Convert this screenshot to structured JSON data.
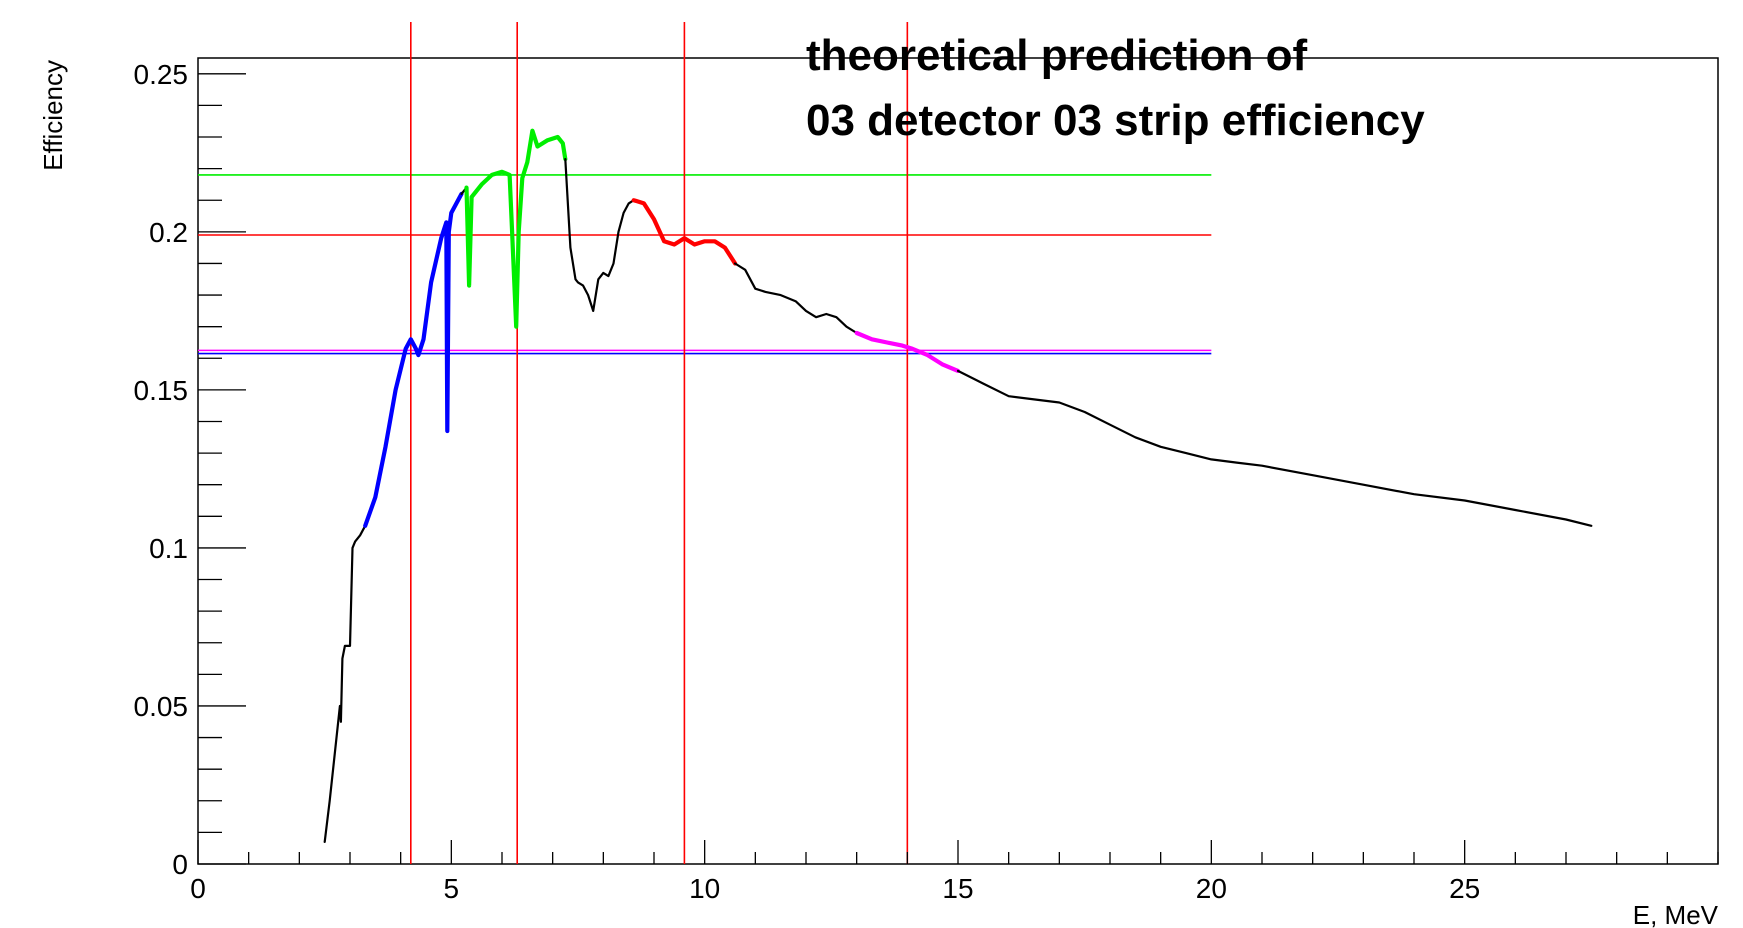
{
  "chart_data": {
    "type": "line",
    "title_lines": [
      "theoretical prediction of",
      "03 detector 03 strip efficiency"
    ],
    "xlabel": "E, MeV",
    "ylabel": "Efficiency",
    "xlim": [
      0,
      30
    ],
    "ylim": [
      0,
      0.255
    ],
    "x_ticks": [
      0,
      5,
      10,
      15,
      20,
      25
    ],
    "x_tick_labels": [
      "0",
      "5",
      "10",
      "15",
      "20",
      "25"
    ],
    "y_ticks": [
      0,
      0.05,
      0.1,
      0.15,
      0.2,
      0.25
    ],
    "y_tick_labels": [
      "0",
      "0.05",
      "0.1",
      "0.15",
      "0.2",
      "0.25"
    ],
    "x_minor_step": 1,
    "y_minor_step": 0.01,
    "grid": false,
    "vertical_lines": {
      "color": "#ff0000",
      "x": [
        4.2,
        6.3,
        9.6,
        14.0
      ]
    },
    "horizontal_lines": [
      {
        "y": 0.218,
        "x_range": [
          0,
          20
        ],
        "color": "#00ee00"
      },
      {
        "y": 0.199,
        "x_range": [
          0,
          20
        ],
        "color": "#ff0000"
      },
      {
        "y": 0.1615,
        "x_range": [
          0,
          20
        ],
        "color": "#0000ff"
      },
      {
        "y": 0.1625,
        "x_range": [
          0,
          20
        ],
        "color": "#ff00ff"
      }
    ],
    "series": [
      {
        "color": "#000000",
        "points": [
          [
            2.5,
            0.007
          ],
          [
            2.6,
            0.02
          ],
          [
            2.7,
            0.035
          ],
          [
            2.8,
            0.05
          ],
          [
            2.82,
            0.045
          ],
          [
            2.85,
            0.065
          ],
          [
            2.9,
            0.069
          ],
          [
            3.0,
            0.069
          ],
          [
            3.05,
            0.1
          ],
          [
            3.1,
            0.102
          ],
          [
            3.2,
            0.104
          ],
          [
            3.3,
            0.107
          ]
        ]
      },
      {
        "color": "#0000ff",
        "points": [
          [
            3.3,
            0.107
          ],
          [
            3.5,
            0.116
          ],
          [
            3.7,
            0.132
          ],
          [
            3.9,
            0.15
          ],
          [
            4.1,
            0.163
          ],
          [
            4.2,
            0.166
          ],
          [
            4.3,
            0.163
          ],
          [
            4.35,
            0.161
          ],
          [
            4.45,
            0.166
          ],
          [
            4.6,
            0.184
          ],
          [
            4.8,
            0.198
          ],
          [
            4.9,
            0.203
          ],
          [
            4.92,
            0.137
          ],
          [
            4.95,
            0.2
          ],
          [
            5.0,
            0.206
          ],
          [
            5.1,
            0.209
          ],
          [
            5.2,
            0.212
          ]
        ]
      },
      {
        "color": "#000000",
        "points": [
          [
            5.2,
            0.212
          ],
          [
            5.3,
            0.214
          ]
        ]
      },
      {
        "color": "#00ee00",
        "points": [
          [
            5.3,
            0.214
          ],
          [
            5.35,
            0.183
          ],
          [
            5.4,
            0.211
          ],
          [
            5.6,
            0.215
          ],
          [
            5.8,
            0.218
          ],
          [
            6.0,
            0.219
          ],
          [
            6.15,
            0.218
          ],
          [
            6.2,
            0.2
          ],
          [
            6.28,
            0.17
          ],
          [
            6.33,
            0.2
          ],
          [
            6.4,
            0.217
          ],
          [
            6.5,
            0.222
          ],
          [
            6.6,
            0.232
          ],
          [
            6.7,
            0.227
          ],
          [
            6.9,
            0.229
          ],
          [
            7.1,
            0.23
          ],
          [
            7.2,
            0.228
          ],
          [
            7.25,
            0.223
          ]
        ]
      },
      {
        "color": "#000000",
        "points": [
          [
            7.25,
            0.223
          ],
          [
            7.35,
            0.195
          ],
          [
            7.45,
            0.185
          ],
          [
            7.5,
            0.184
          ],
          [
            7.6,
            0.183
          ],
          [
            7.7,
            0.18
          ],
          [
            7.8,
            0.175
          ],
          [
            7.9,
            0.185
          ],
          [
            8.0,
            0.187
          ],
          [
            8.1,
            0.186
          ],
          [
            8.2,
            0.19
          ],
          [
            8.3,
            0.2
          ],
          [
            8.4,
            0.206
          ],
          [
            8.5,
            0.209
          ],
          [
            8.6,
            0.21
          ]
        ]
      },
      {
        "color": "#ff0000",
        "points": [
          [
            8.6,
            0.21
          ],
          [
            8.8,
            0.209
          ],
          [
            9.0,
            0.204
          ],
          [
            9.2,
            0.197
          ],
          [
            9.4,
            0.196
          ],
          [
            9.6,
            0.198
          ],
          [
            9.8,
            0.196
          ],
          [
            10.0,
            0.197
          ],
          [
            10.2,
            0.197
          ],
          [
            10.4,
            0.195
          ],
          [
            10.6,
            0.19
          ]
        ]
      },
      {
        "color": "#000000",
        "points": [
          [
            10.6,
            0.19
          ],
          [
            10.8,
            0.188
          ],
          [
            11.0,
            0.182
          ],
          [
            11.2,
            0.181
          ],
          [
            11.5,
            0.18
          ],
          [
            11.8,
            0.178
          ],
          [
            12.0,
            0.175
          ],
          [
            12.2,
            0.173
          ],
          [
            12.4,
            0.174
          ],
          [
            12.6,
            0.173
          ],
          [
            12.8,
            0.17
          ],
          [
            13.0,
            0.168
          ]
        ]
      },
      {
        "color": "#ff00ff",
        "points": [
          [
            13.0,
            0.168
          ],
          [
            13.3,
            0.166
          ],
          [
            13.6,
            0.165
          ],
          [
            13.9,
            0.164
          ],
          [
            14.1,
            0.163
          ],
          [
            14.4,
            0.161
          ],
          [
            14.7,
            0.158
          ],
          [
            15.0,
            0.156
          ]
        ]
      },
      {
        "color": "#000000",
        "points": [
          [
            15.0,
            0.156
          ],
          [
            15.5,
            0.152
          ],
          [
            16.0,
            0.148
          ],
          [
            16.5,
            0.147
          ],
          [
            17.0,
            0.146
          ],
          [
            17.5,
            0.143
          ],
          [
            18.0,
            0.139
          ],
          [
            18.5,
            0.135
          ],
          [
            19.0,
            0.132
          ],
          [
            19.5,
            0.13
          ],
          [
            20.0,
            0.128
          ],
          [
            20.5,
            0.127
          ],
          [
            21.0,
            0.126
          ],
          [
            22.0,
            0.123
          ],
          [
            23.0,
            0.12
          ],
          [
            24.0,
            0.117
          ],
          [
            25.0,
            0.115
          ],
          [
            26.0,
            0.112
          ],
          [
            27.0,
            0.109
          ],
          [
            27.5,
            0.107
          ]
        ]
      }
    ]
  }
}
